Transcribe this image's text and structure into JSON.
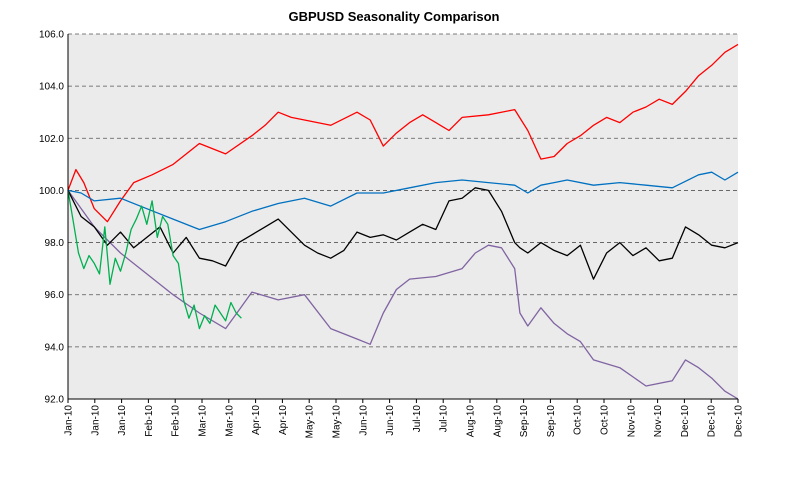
{
  "chart_data": {
    "type": "line",
    "title": "GBPUSD Seasonality Comparison",
    "xlabel": "",
    "ylabel": "",
    "ylim": [
      92.0,
      106.0
    ],
    "yticks": [
      "92.0",
      "94.0",
      "96.0",
      "98.0",
      "100.0",
      "102.0",
      "104.0",
      "106.0"
    ],
    "xlim": [
      0,
      255
    ],
    "xticks": [
      "Jan-10",
      "Jan-10",
      "Jan-10",
      "Feb-10",
      "Feb-10",
      "Mar-10",
      "Mar-10",
      "Apr-10",
      "Apr-10",
      "May-10",
      "May-10",
      "Jun-10",
      "Jun-10",
      "Jul-10",
      "Jul-10",
      "Aug-10",
      "Aug-10",
      "Sep-10",
      "Sep-10",
      "Oct-10",
      "Oct-10",
      "Nov-10",
      "Nov-10",
      "Dec-10",
      "Dec-10",
      "Dec-10"
    ],
    "grid": true,
    "background": "#ebebeb",
    "series": [
      {
        "name": "red",
        "color": "#ff0000",
        "x": [
          0,
          3,
          6,
          10,
          15,
          20,
          25,
          32,
          40,
          50,
          60,
          70,
          75,
          80,
          85,
          90,
          100,
          110,
          115,
          120,
          125,
          130,
          135,
          140,
          145,
          150,
          160,
          170,
          175,
          180,
          185,
          190,
          195,
          200,
          205,
          210,
          215,
          220,
          225,
          230,
          235,
          240,
          245,
          250,
          255
        ],
        "y": [
          100.0,
          100.8,
          100.3,
          99.3,
          98.8,
          99.6,
          100.3,
          100.6,
          101.0,
          101.8,
          101.4,
          102.1,
          102.5,
          103.0,
          102.8,
          102.7,
          102.5,
          103.0,
          102.7,
          101.7,
          102.2,
          102.6,
          102.9,
          102.6,
          102.3,
          102.8,
          102.9,
          103.1,
          102.3,
          101.2,
          101.3,
          101.8,
          102.1,
          102.5,
          102.8,
          102.6,
          103.0,
          103.2,
          103.5,
          103.3,
          103.8,
          104.4,
          104.8,
          105.3,
          105.6
        ]
      },
      {
        "name": "blue",
        "color": "#0070c0",
        "x": [
          0,
          5,
          10,
          20,
          30,
          40,
          50,
          60,
          70,
          80,
          90,
          100,
          110,
          120,
          130,
          140,
          150,
          160,
          170,
          175,
          180,
          185,
          190,
          200,
          210,
          220,
          230,
          240,
          245,
          250,
          255
        ],
        "y": [
          100.0,
          99.9,
          99.6,
          99.7,
          99.3,
          98.9,
          98.5,
          98.8,
          99.2,
          99.5,
          99.7,
          99.4,
          99.9,
          99.9,
          100.1,
          100.3,
          100.4,
          100.3,
          100.2,
          99.9,
          100.2,
          100.3,
          100.4,
          100.2,
          100.3,
          100.2,
          100.1,
          100.6,
          100.7,
          100.4,
          100.7
        ]
      },
      {
        "name": "black",
        "color": "#000000",
        "x": [
          0,
          5,
          10,
          15,
          20,
          25,
          30,
          35,
          40,
          45,
          50,
          55,
          60,
          65,
          70,
          75,
          80,
          85,
          90,
          95,
          100,
          105,
          110,
          115,
          120,
          125,
          130,
          135,
          140,
          145,
          150,
          155,
          160,
          165,
          170,
          172,
          175,
          180,
          185,
          190,
          195,
          200,
          205,
          210,
          215,
          220,
          225,
          230,
          235,
          240,
          245,
          250,
          255
        ],
        "y": [
          100.0,
          99.0,
          98.6,
          97.9,
          98.4,
          97.8,
          98.2,
          98.6,
          97.6,
          98.2,
          97.4,
          97.3,
          97.1,
          98.0,
          98.3,
          98.6,
          98.9,
          98.4,
          97.9,
          97.6,
          97.4,
          97.7,
          98.4,
          98.2,
          98.3,
          98.1,
          98.4,
          98.7,
          98.5,
          99.6,
          99.7,
          100.1,
          100.0,
          99.2,
          98.0,
          97.8,
          97.6,
          98.0,
          97.7,
          97.5,
          97.9,
          96.6,
          97.6,
          98.0,
          97.5,
          97.8,
          97.3,
          97.4,
          98.6,
          98.3,
          97.9,
          97.8,
          98.0
        ]
      },
      {
        "name": "purple",
        "color": "#8064a2",
        "x": [
          0,
          10,
          20,
          30,
          40,
          50,
          60,
          65,
          70,
          80,
          90,
          100,
          110,
          115,
          120,
          125,
          130,
          140,
          150,
          155,
          160,
          165,
          170,
          172,
          175,
          180,
          185,
          190,
          195,
          200,
          210,
          220,
          230,
          235,
          240,
          245,
          250,
          255
        ],
        "y": [
          100.0,
          98.6,
          97.6,
          96.8,
          96.0,
          95.3,
          94.7,
          95.4,
          96.1,
          95.8,
          96.0,
          94.7,
          94.3,
          94.1,
          95.3,
          96.2,
          96.6,
          96.7,
          97.0,
          97.6,
          97.9,
          97.8,
          97.0,
          95.3,
          94.8,
          95.5,
          94.9,
          94.5,
          94.2,
          93.5,
          93.2,
          92.5,
          92.7,
          93.5,
          93.2,
          92.8,
          92.3,
          92.0
        ]
      },
      {
        "name": "green",
        "color": "#00b050",
        "x": [
          0,
          2,
          4,
          6,
          8,
          10,
          12,
          14,
          16,
          18,
          20,
          22,
          24,
          26,
          28,
          30,
          32,
          34,
          36,
          38,
          40,
          42,
          44,
          46,
          48,
          50,
          52,
          54,
          56,
          58,
          60,
          62,
          64,
          66
        ],
        "y": [
          100.0,
          98.8,
          97.6,
          97.0,
          97.5,
          97.2,
          96.8,
          98.6,
          96.4,
          97.4,
          96.9,
          97.6,
          98.5,
          98.9,
          99.4,
          98.7,
          99.6,
          98.2,
          99.0,
          98.7,
          97.5,
          97.2,
          95.8,
          95.1,
          95.6,
          94.7,
          95.2,
          94.9,
          95.6,
          95.3,
          95.0,
          95.7,
          95.3,
          95.1
        ]
      }
    ]
  }
}
